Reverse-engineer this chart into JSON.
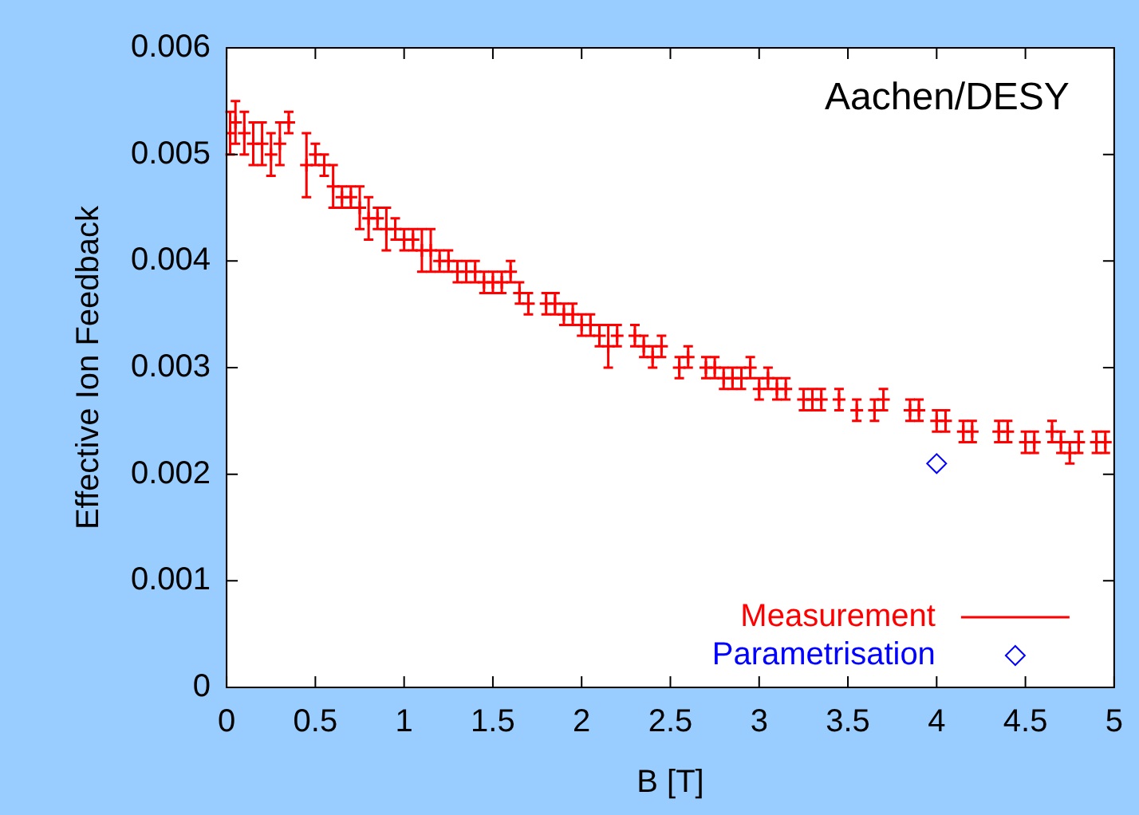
{
  "chart_data": {
    "type": "scatter",
    "xlabel": "B [T]",
    "ylabel": "Effective Ion Feedback",
    "annotations": [
      "Aachen/DESY"
    ],
    "xlim": [
      0,
      5
    ],
    "xticks": [
      0,
      0.5,
      1,
      1.5,
      2,
      2.5,
      3,
      3.5,
      4,
      4.5,
      5
    ],
    "ylim": [
      0,
      0.006
    ],
    "yticks": [
      0,
      0.001,
      0.002,
      0.003,
      0.004,
      0.005,
      0.006
    ],
    "legend": "bottom right",
    "series": [
      {
        "name": "Measurement",
        "color": "#ff0000",
        "marker": "cross",
        "x": [
          0.02,
          0.05,
          0.1,
          0.15,
          0.2,
          0.25,
          0.3,
          0.35,
          0.45,
          0.5,
          0.55,
          0.6,
          0.65,
          0.7,
          0.75,
          0.8,
          0.85,
          0.9,
          0.95,
          1.0,
          1.05,
          1.1,
          1.15,
          1.2,
          1.25,
          1.3,
          1.35,
          1.4,
          1.45,
          1.5,
          1.55,
          1.6,
          1.65,
          1.7,
          1.8,
          1.85,
          1.9,
          1.95,
          2.0,
          2.05,
          2.1,
          2.15,
          2.2,
          2.3,
          2.35,
          2.4,
          2.45,
          2.55,
          2.6,
          2.7,
          2.75,
          2.8,
          2.85,
          2.9,
          2.95,
          3.0,
          3.05,
          3.1,
          3.15,
          3.25,
          3.3,
          3.35,
          3.45,
          3.55,
          3.65,
          3.7,
          3.85,
          3.9,
          4.0,
          4.05,
          4.15,
          4.2,
          4.35,
          4.4,
          4.5,
          4.55,
          4.65,
          4.7,
          4.75,
          4.8,
          4.9,
          4.95
        ],
        "values": [
          0.0052,
          0.0053,
          0.0052,
          0.0051,
          0.0051,
          0.005,
          0.0051,
          0.0053,
          0.0049,
          0.005,
          0.0049,
          0.0047,
          0.0046,
          0.0046,
          0.0045,
          0.0044,
          0.0044,
          0.0043,
          0.0043,
          0.0042,
          0.0042,
          0.0041,
          0.0041,
          0.004,
          0.004,
          0.0039,
          0.0039,
          0.0039,
          0.0038,
          0.0038,
          0.0038,
          0.0039,
          0.0037,
          0.0036,
          0.0036,
          0.0036,
          0.0035,
          0.0035,
          0.0034,
          0.0034,
          0.0033,
          0.0032,
          0.0033,
          0.0033,
          0.0032,
          0.0031,
          0.0032,
          0.003,
          0.0031,
          0.003,
          0.003,
          0.0029,
          0.0029,
          0.0029,
          0.003,
          0.0028,
          0.0029,
          0.0028,
          0.0028,
          0.0027,
          0.0027,
          0.0027,
          0.0027,
          0.0026,
          0.0026,
          0.0027,
          0.0026,
          0.0026,
          0.0025,
          0.0025,
          0.0024,
          0.0024,
          0.0024,
          0.0024,
          0.0023,
          0.0023,
          0.0024,
          0.0023,
          0.0022,
          0.0023,
          0.0023,
          0.0023
        ],
        "errors": [
          0.0002,
          0.0002,
          0.0002,
          0.0002,
          0.0002,
          0.0002,
          0.0002,
          0.0001,
          0.0003,
          0.0001,
          0.0001,
          0.0002,
          0.0001,
          0.0001,
          0.0002,
          0.0002,
          0.0001,
          0.0002,
          0.0001,
          0.0001,
          0.0001,
          0.0002,
          0.0002,
          0.0001,
          0.0001,
          0.0001,
          0.0001,
          0.0001,
          0.0001,
          0.0001,
          0.0001,
          0.0001,
          0.0001,
          0.0001,
          0.0001,
          0.0001,
          0.0001,
          0.0001,
          0.0001,
          0.0001,
          0.0001,
          0.0002,
          0.0001,
          0.0001,
          0.0001,
          0.0001,
          0.0001,
          0.0001,
          0.0001,
          0.0001,
          0.0001,
          0.0001,
          0.0001,
          0.0001,
          0.0001,
          0.0001,
          0.0001,
          0.0001,
          0.0001,
          0.0001,
          0.0001,
          0.0001,
          0.0001,
          0.0001,
          0.0001,
          0.0001,
          0.0001,
          0.0001,
          0.0001,
          0.0001,
          0.0001,
          0.0001,
          0.0001,
          0.0001,
          0.0001,
          0.0001,
          0.0001,
          0.0001,
          0.0001,
          0.0001,
          0.0001,
          0.0001
        ]
      },
      {
        "name": "Parametrisation",
        "color": "#0000ff",
        "marker": "diamond",
        "x": [
          4
        ],
        "values": [
          0.0021
        ]
      }
    ]
  }
}
